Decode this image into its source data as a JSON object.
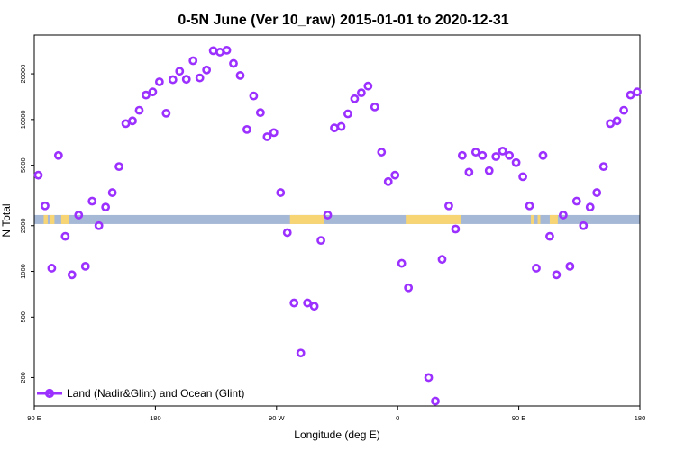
{
  "chart_data": {
    "type": "scatter",
    "title": "0-5N June (Ver 10_raw)   2015-01-01 to 2020-12-31",
    "xlabel": "Longitude (deg E)",
    "ylabel": "N Total",
    "x_ticks": [
      {
        "value": 90,
        "label": "90 E"
      },
      {
        "value": 180,
        "label": "180"
      },
      {
        "value": 270,
        "label": "90 W"
      },
      {
        "value": 360,
        "label": "0"
      },
      {
        "value": 450,
        "label": "90 E"
      },
      {
        "value": 540,
        "label": "180"
      }
    ],
    "x_note": "x values are longitudes in degrees East continued past 360 (e.g. 450 = 90 E, 540 = 180) so the axis runs 90 E to 180 across two wraps",
    "xlim": [
      90,
      540
    ],
    "y_scale": "log",
    "y_ticks": [
      200,
      500,
      1000,
      2000,
      5000,
      10000,
      20000
    ],
    "ylim": [
      130,
      36000
    ],
    "grid": false,
    "legend_position": "bottom-left",
    "series": [
      {
        "name": "Land (Nadir&Glint) and Ocean (Glint)",
        "color": "#9b30ff",
        "marker": "open-circle",
        "points": [
          [
            93,
            4300
          ],
          [
            98,
            2700
          ],
          [
            103,
            1050
          ],
          [
            108,
            5800
          ],
          [
            113,
            1700
          ],
          [
            118,
            950
          ],
          [
            123,
            2350
          ],
          [
            128,
            1080
          ],
          [
            133,
            2900
          ],
          [
            138,
            2000
          ],
          [
            143,
            2650
          ],
          [
            148,
            3300
          ],
          [
            153,
            4900
          ],
          [
            158,
            9400
          ],
          [
            163,
            9800
          ],
          [
            168,
            11500
          ],
          [
            173,
            14500
          ],
          [
            178,
            15200
          ],
          [
            183,
            17700
          ],
          [
            188,
            11000
          ],
          [
            193,
            18300
          ],
          [
            198,
            20800
          ],
          [
            203,
            18400
          ],
          [
            208,
            24400
          ],
          [
            213,
            18800
          ],
          [
            218,
            21200
          ],
          [
            223,
            28400
          ],
          [
            228,
            27800
          ],
          [
            233,
            28600
          ],
          [
            238,
            23400
          ],
          [
            243,
            19500
          ],
          [
            248,
            8600
          ],
          [
            253,
            14300
          ],
          [
            258,
            11100
          ],
          [
            263,
            7700
          ],
          [
            268,
            8200
          ],
          [
            273,
            3300
          ],
          [
            278,
            1800
          ],
          [
            283,
            620
          ],
          [
            288,
            290
          ],
          [
            293,
            620
          ],
          [
            298,
            590
          ],
          [
            303,
            1600
          ],
          [
            308,
            2350
          ],
          [
            313,
            8800
          ],
          [
            318,
            9000
          ],
          [
            323,
            10900
          ],
          [
            328,
            13700
          ],
          [
            333,
            15000
          ],
          [
            338,
            16600
          ],
          [
            343,
            12100
          ],
          [
            348,
            6100
          ],
          [
            353,
            3900
          ],
          [
            358,
            4300
          ],
          [
            363,
            1130
          ],
          [
            368,
            780
          ],
          [
            383,
            200
          ],
          [
            388,
            140
          ],
          [
            393,
            1200
          ],
          [
            398,
            2700
          ],
          [
            403,
            1900
          ],
          [
            408,
            5800
          ],
          [
            413,
            4500
          ],
          [
            418,
            6100
          ],
          [
            423,
            5800
          ],
          [
            428,
            4600
          ],
          [
            433,
            5700
          ],
          [
            438,
            6200
          ],
          [
            443,
            5800
          ],
          [
            448,
            5200
          ],
          [
            453,
            4200
          ],
          [
            458,
            2700
          ],
          [
            463,
            1050
          ],
          [
            468,
            5800
          ],
          [
            473,
            1700
          ],
          [
            478,
            950
          ],
          [
            483,
            2350
          ],
          [
            488,
            1080
          ],
          [
            493,
            2900
          ],
          [
            498,
            2000
          ],
          [
            503,
            2650
          ],
          [
            508,
            3300
          ],
          [
            513,
            4900
          ],
          [
            518,
            9400
          ],
          [
            523,
            9800
          ],
          [
            528,
            11500
          ],
          [
            533,
            14500
          ],
          [
            538,
            15200
          ]
        ]
      }
    ],
    "background_band": {
      "y_range": [
        2050,
        2350
      ],
      "ocean_color": "#a5b8d6",
      "land_color": "#f7d575",
      "land_segments": [
        [
          97,
          100
        ],
        [
          102,
          105
        ],
        [
          110,
          116
        ],
        [
          280,
          305
        ],
        [
          366,
          407
        ],
        [
          459,
          461
        ],
        [
          464,
          466
        ],
        [
          473,
          479
        ]
      ]
    }
  }
}
